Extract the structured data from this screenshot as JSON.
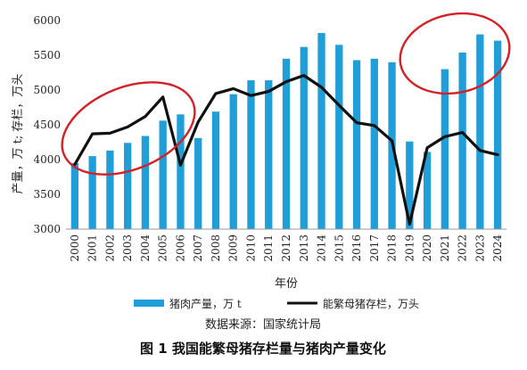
{
  "chart_data": {
    "type": "bar",
    "caption": "图 1   我国能繁母猪存栏量与猪肉产量变化",
    "source": "数据来源：国家统计局",
    "xlabel": "年份",
    "ylabel": "产量，万 t; 存栏，万头",
    "ylim": [
      3000,
      6000
    ],
    "y_ticks": [
      3000,
      3500,
      4000,
      4500,
      5000,
      5500,
      6000
    ],
    "categories": [
      "2000",
      "2001",
      "2002",
      "2003",
      "2004",
      "2005",
      "2006",
      "2007",
      "2008",
      "2009",
      "2010",
      "2011",
      "2012",
      "2013",
      "2014",
      "2015",
      "2016",
      "2017",
      "2018",
      "2019",
      "2020",
      "2021",
      "2022",
      "2023",
      "2024"
    ],
    "series": [
      {
        "name": "猪肉产量，万 t",
        "kind": "bar",
        "color": "#1f9ed7",
        "values": [
          3950,
          4050,
          4130,
          4240,
          4340,
          4560,
          4650,
          4310,
          4690,
          4940,
          5140,
          5140,
          5450,
          5620,
          5820,
          5650,
          5430,
          5450,
          5400,
          4260,
          4110,
          5300,
          5540,
          5800,
          5710
        ]
      },
      {
        "name": "能繁母猪存栏，万头",
        "kind": "line",
        "color": "#111111",
        "values": [
          3930,
          4370,
          4380,
          4470,
          4620,
          4900,
          3920,
          4540,
          4950,
          5020,
          4920,
          4980,
          5120,
          5210,
          5040,
          4780,
          4530,
          4490,
          4270,
          3070,
          4170,
          4330,
          4390,
          4130,
          4070
        ]
      }
    ],
    "legend_position": "bottom",
    "grid": false,
    "annotations": [
      "red-ellipse-2000-2005",
      "red-ellipse-2021-2024"
    ],
    "annotation_color": "#d42026"
  }
}
